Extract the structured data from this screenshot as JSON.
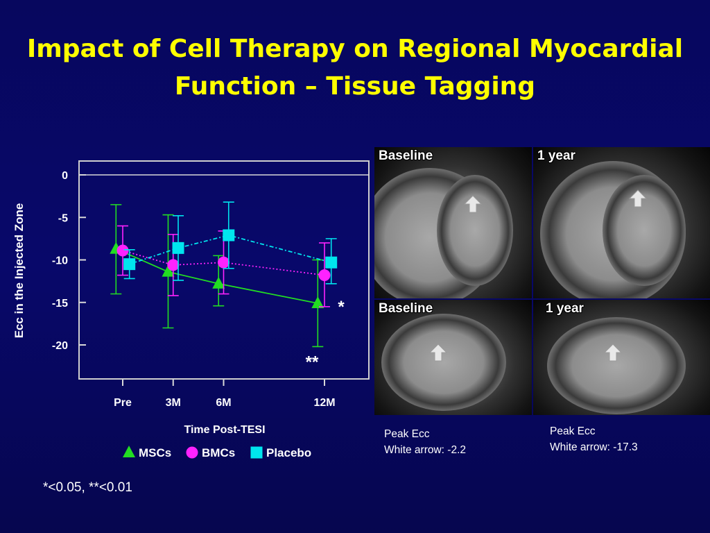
{
  "title": {
    "line1": "Impact of Cell Therapy on Regional Myocardial",
    "line2": "Function – Tissue Tagging"
  },
  "chart_data": {
    "type": "line",
    "ylabel": "Ecc in the Injected Zone",
    "xlabel": "Time Post-TESI",
    "categories": [
      "Pre",
      "3M",
      "6M",
      "12M"
    ],
    "x_months": [
      0,
      3,
      6,
      12
    ],
    "ylim": [
      -24,
      2
    ],
    "yticks": [
      0,
      -5,
      -10,
      -15,
      -20
    ],
    "reference_line": 0,
    "grid": false,
    "legend_position": "bottom",
    "annotations": [
      {
        "text": "*",
        "x": 12,
        "y": -15
      },
      {
        "text": "**",
        "x": 12,
        "y": -21.5
      }
    ],
    "series": [
      {
        "name": "MSCs",
        "marker": "triangle",
        "color": "#22dd22",
        "line_style": "solid",
        "x": [
          -0.4,
          2.7,
          5.7,
          11.6
        ],
        "values": [
          -8.7,
          -11.4,
          -12.8,
          -15.1
        ],
        "err_low": [
          -14,
          -18,
          -15.4,
          -20.2
        ],
        "err_high": [
          -3.5,
          -4.7,
          -9.5,
          -10
        ]
      },
      {
        "name": "BMCs",
        "marker": "circle",
        "color": "#ff22ff",
        "line_style": "dotted",
        "x": [
          0,
          3,
          6,
          12
        ],
        "values": [
          -8.9,
          -10.6,
          -10.3,
          -11.8
        ],
        "err_low": [
          -11.8,
          -14.2,
          -14,
          -15.5
        ],
        "err_high": [
          -6,
          -7,
          -6.6,
          -8
        ]
      },
      {
        "name": "Placebo",
        "marker": "square",
        "color": "#00e5ee",
        "line_style": "dashdot",
        "x": [
          0.4,
          3.3,
          6.3,
          12.4
        ],
        "values": [
          -10.5,
          -8.6,
          -7.1,
          -10.3
        ],
        "err_low": [
          -12.2,
          -12.4,
          -11,
          -12.8
        ],
        "err_high": [
          -8.8,
          -4.8,
          -3.2,
          -7.5
        ]
      }
    ]
  },
  "footnote": "*<0.05, **<0.01",
  "mri": {
    "top_left_label": "Baseline",
    "top_right_label": "1 year",
    "bottom_left_label": "Baseline",
    "bottom_right_label": "1 year"
  },
  "captions": {
    "left_line1": "Peak Ecc",
    "left_line2": "White arrow: -2.2",
    "right_line1": "Peak Ecc",
    "right_line2": "White arrow: -17.3"
  }
}
